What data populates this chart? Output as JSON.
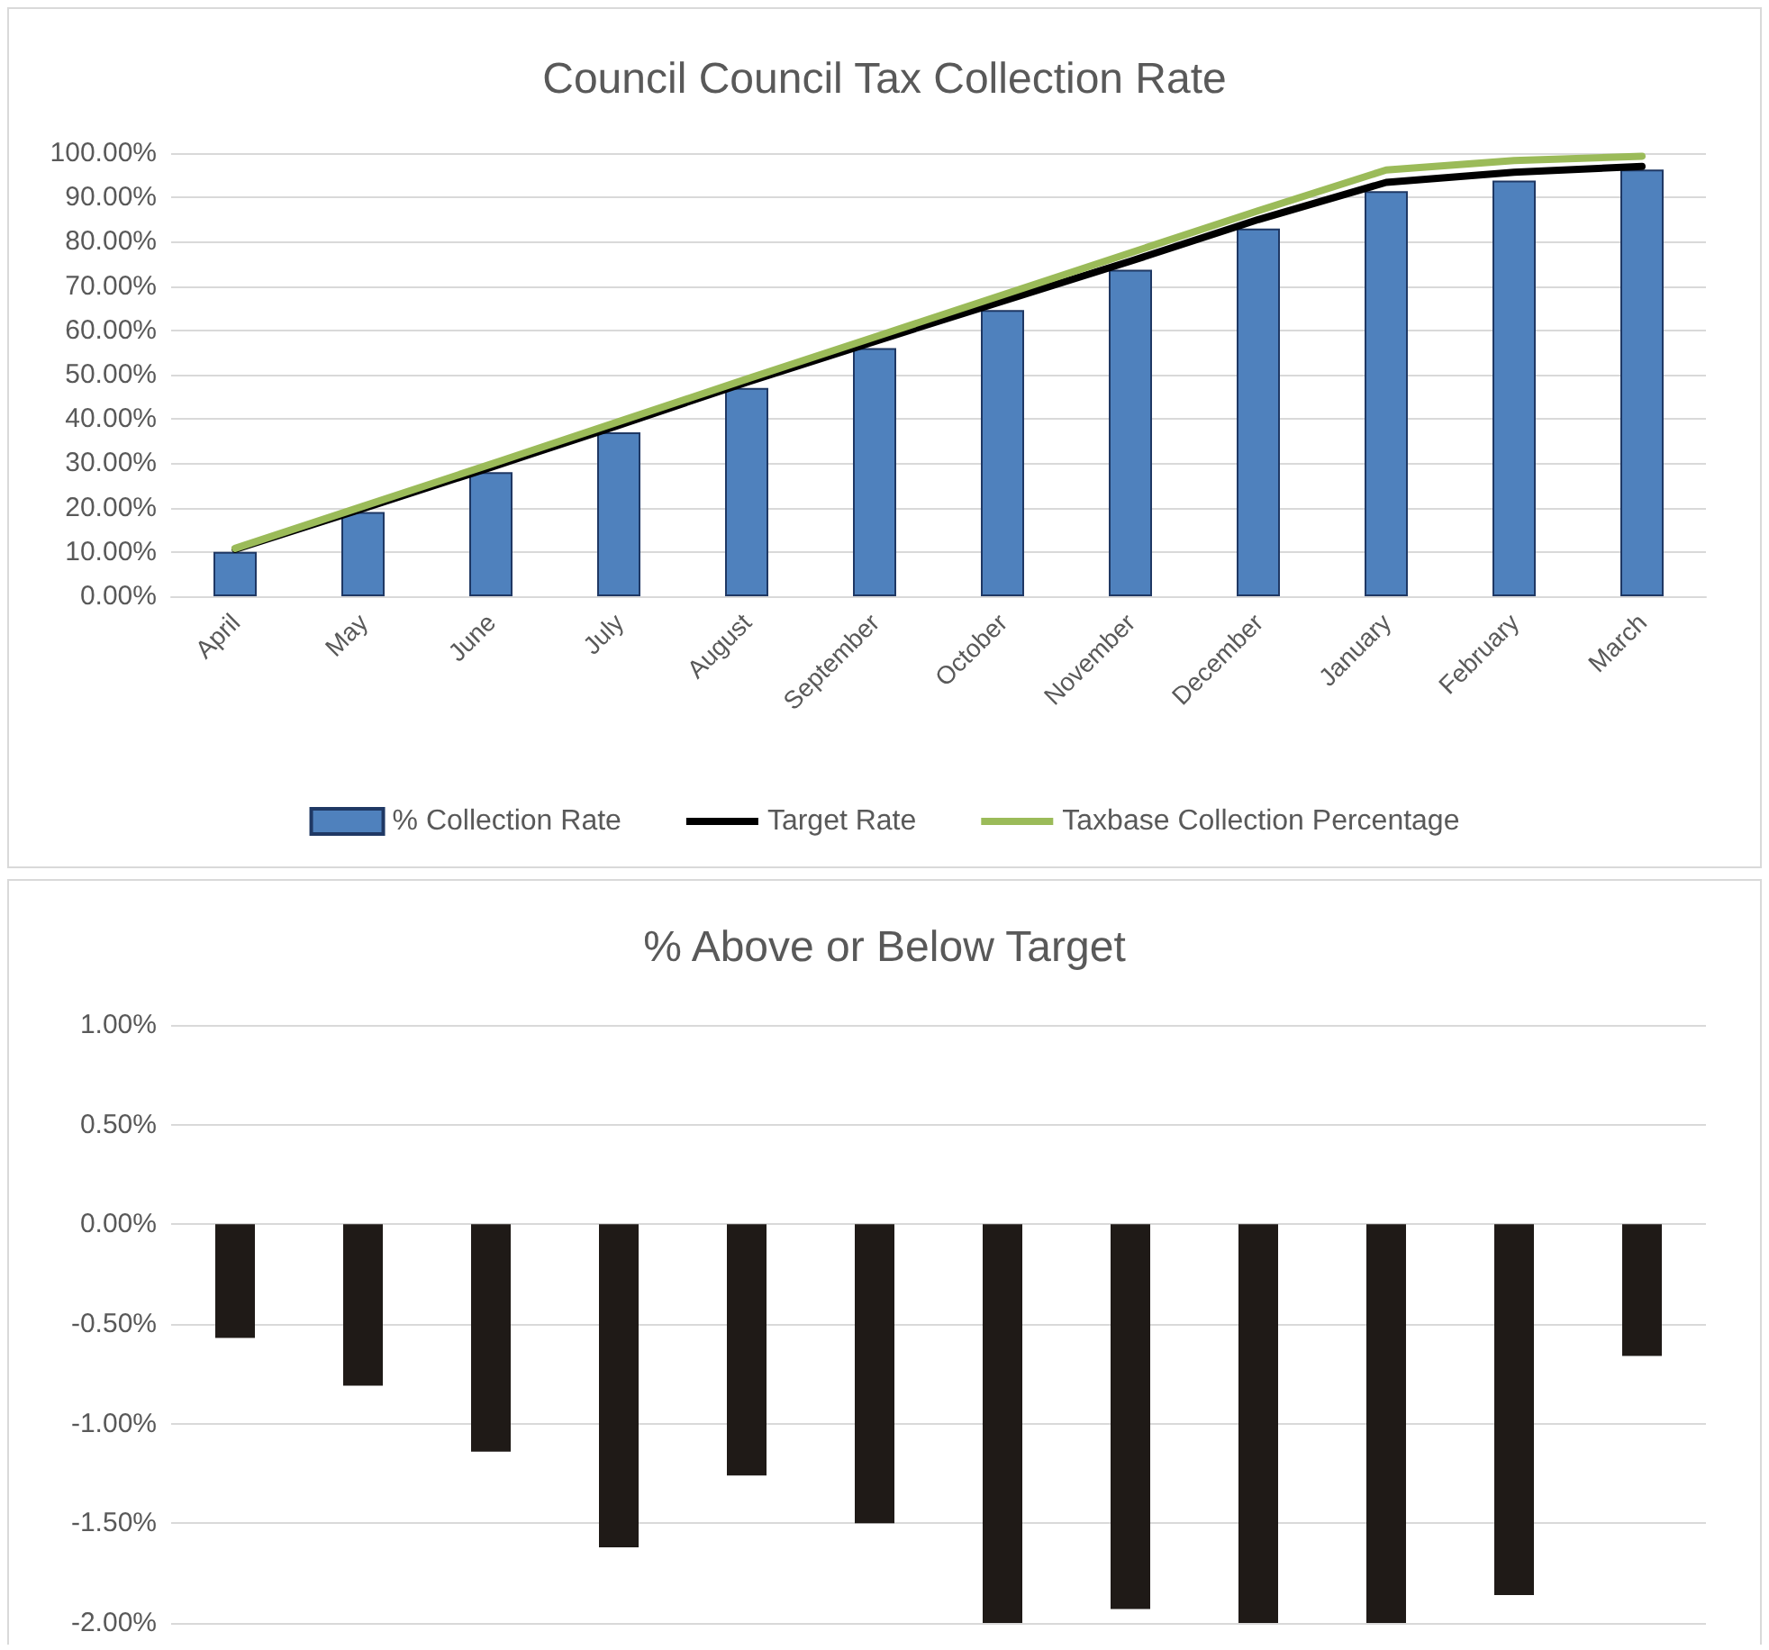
{
  "chart_data": [
    {
      "type": "bar",
      "title": "Council Council Tax Collection Rate",
      "categories": [
        "April",
        "May",
        "June",
        "July",
        "August",
        "September",
        "October",
        "November",
        "December",
        "January",
        "February",
        "March"
      ],
      "series": [
        {
          "name": "% Collection Rate",
          "type": "bar",
          "color": "#4f81bd",
          "values": [
            10,
            19,
            28,
            37,
            47,
            56,
            64.6,
            73.7,
            83,
            91.4,
            93.8,
            96.3
          ]
        },
        {
          "name": "Target Rate",
          "type": "line",
          "color": "#000000",
          "values": [
            10.6,
            19.8,
            29.1,
            38.6,
            48.3,
            57.5,
            66.6,
            75.6,
            85,
            93.4,
            95.7,
            97
          ]
        },
        {
          "name": "Taxbase Collection Percentage",
          "type": "line",
          "color": "#9bbb59",
          "values": [
            10.8,
            20.3,
            29.8,
            39.4,
            49,
            58.5,
            68,
            77.5,
            87,
            96.2,
            98.3,
            99.3
          ]
        }
      ],
      "ylim": [
        0,
        100
      ],
      "yticks": [
        {
          "value": 0,
          "label": "0.00%"
        },
        {
          "value": 10,
          "label": "10.00%"
        },
        {
          "value": 20,
          "label": "20.00%"
        },
        {
          "value": 30,
          "label": "30.00%"
        },
        {
          "value": 40,
          "label": "40.00%"
        },
        {
          "value": 50,
          "label": "50.00%"
        },
        {
          "value": 60,
          "label": "60.00%"
        },
        {
          "value": 70,
          "label": "70.00%"
        },
        {
          "value": 80,
          "label": "80.00%"
        },
        {
          "value": 90,
          "label": "90.00%"
        },
        {
          "value": 100,
          "label": "100.00%"
        }
      ],
      "grid": "y",
      "legend": "bottom",
      "marker": "none",
      "line_style": "solid"
    },
    {
      "type": "bar",
      "title": "% Above or Below Target",
      "categories": [
        null,
        null,
        null,
        null,
        null,
        null,
        null,
        null,
        null,
        null,
        null,
        null
      ],
      "series": [
        {
          "color": "#1f1a17",
          "values": [
            -0.57,
            -0.81,
            -1.14,
            -1.62,
            -1.26,
            -1.5,
            -2.0,
            -1.93,
            -2.0,
            -2.0,
            -1.86,
            -0.66
          ]
        }
      ],
      "ylim": [
        -2,
        1
      ],
      "yticks": [
        {
          "value": -2,
          "label": "-2.00%"
        },
        {
          "value": -1.5,
          "label": "-1.50%"
        },
        {
          "value": -1,
          "label": "-1.00%"
        },
        {
          "value": -0.5,
          "label": "-0.50%"
        },
        {
          "value": 0,
          "label": "0.00%"
        },
        {
          "value": 0.5,
          "label": "0.50%"
        },
        {
          "value": 1,
          "label": "1.00%"
        }
      ],
      "grid": "y",
      "tick_labels": "y"
    }
  ]
}
